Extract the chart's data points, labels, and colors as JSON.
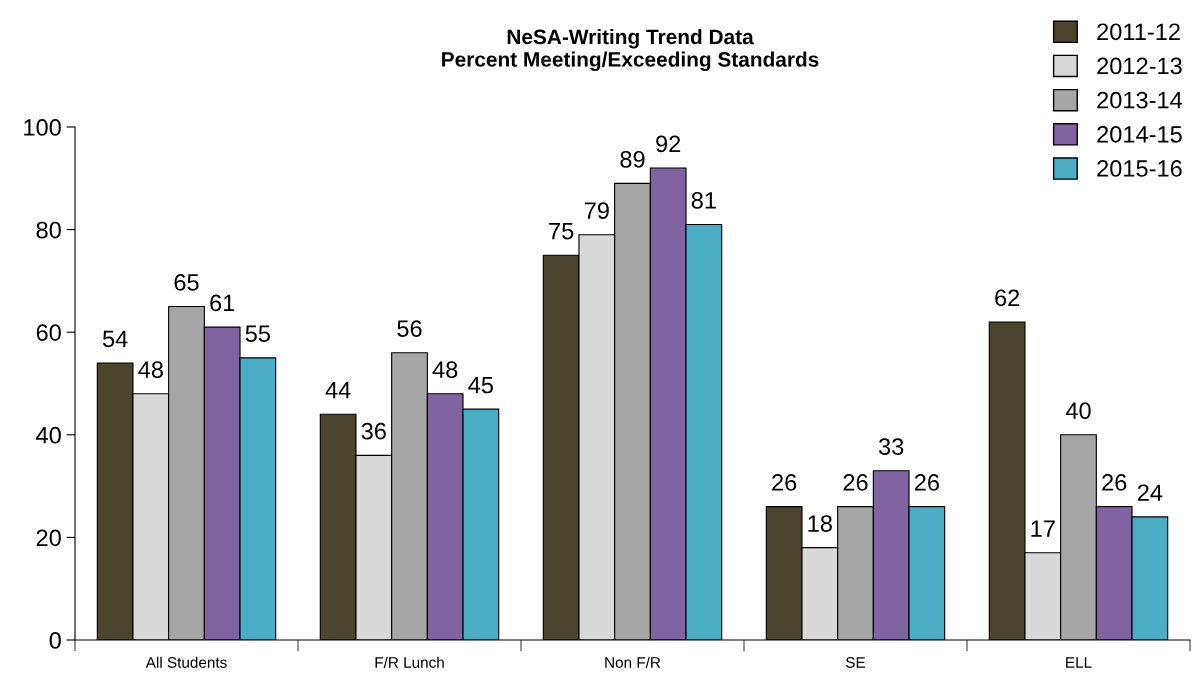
{
  "chart_data": {
    "type": "bar",
    "title": "NeSA-Writing Trend Data\nPercent Meeting/Exceeding Standards",
    "categories": [
      "All Students",
      "F/R Lunch",
      "Non F/R",
      "SE",
      "ELL"
    ],
    "series": [
      {
        "name": "2011-12",
        "color": "#4b452d",
        "values": [
          54,
          44,
          75,
          26,
          62
        ]
      },
      {
        "name": "2012-13",
        "color": "#d9d9d9",
        "values": [
          48,
          36,
          79,
          18,
          17
        ]
      },
      {
        "name": "2013-14",
        "color": "#a6a6a6",
        "values": [
          65,
          56,
          89,
          26,
          40
        ]
      },
      {
        "name": "2014-15",
        "color": "#8064a2",
        "values": [
          61,
          48,
          92,
          33,
          26
        ]
      },
      {
        "name": "2015-16",
        "color": "#4bacc6",
        "values": [
          55,
          45,
          81,
          26,
          24
        ]
      }
    ],
    "ylim": [
      0,
      100
    ],
    "yticks": [
      0,
      20,
      40,
      60,
      80,
      100
    ],
    "grid": false,
    "legend": "top right",
    "data_labels": true
  }
}
